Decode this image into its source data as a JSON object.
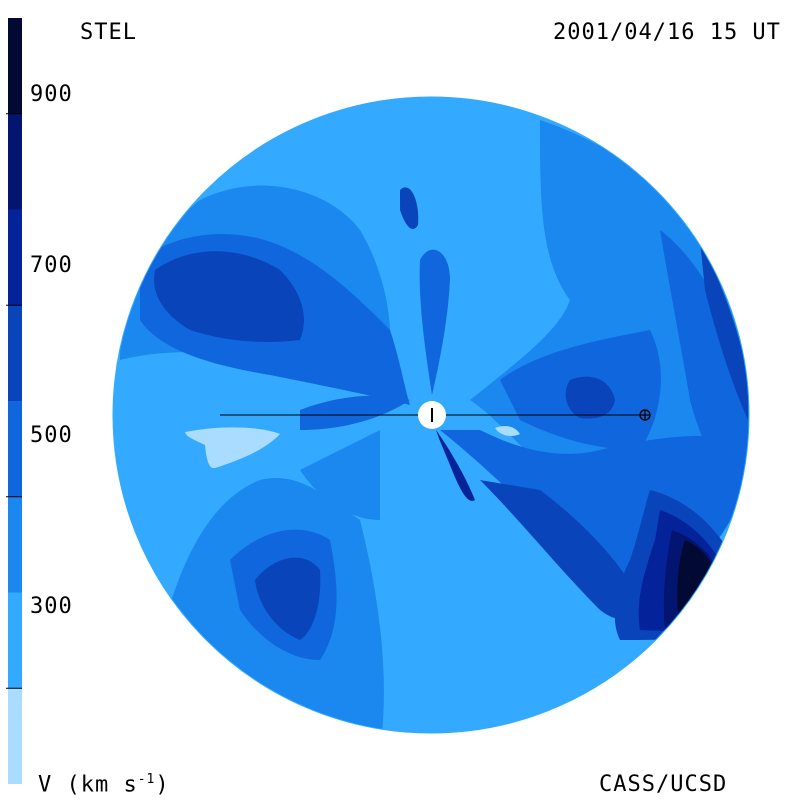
{
  "header": {
    "observatory": "STEL",
    "timestamp": "2001/04/16 15 UT"
  },
  "footer": {
    "units_label": "V (km s",
    "units_superscript": "-1",
    "units_close": ")",
    "credit": "CASS/UCSD"
  },
  "colorbar": {
    "ticks": [
      "900",
      "700",
      "500",
      "300"
    ],
    "bands": [
      {
        "color": "#aadcff",
        "from": 200,
        "to": 300
      },
      {
        "color": "#33aaff",
        "from": 300,
        "to": 400
      },
      {
        "color": "#1a88ee",
        "from": 400,
        "to": 500
      },
      {
        "color": "#1066dd",
        "from": 500,
        "to": 600
      },
      {
        "color": "#0a44bb",
        "from": 600,
        "to": 700
      },
      {
        "color": "#04229a",
        "from": 700,
        "to": 800
      },
      {
        "color": "#031570",
        "from": 800,
        "to": 900
      },
      {
        "color": "#020a33",
        "from": 900,
        "to": 1000
      }
    ]
  },
  "map": {
    "type": "solar wind velocity synoptic map",
    "background_color": "#33aaff",
    "sun_marker": "sun",
    "earth_marker": "earth-symbol"
  }
}
